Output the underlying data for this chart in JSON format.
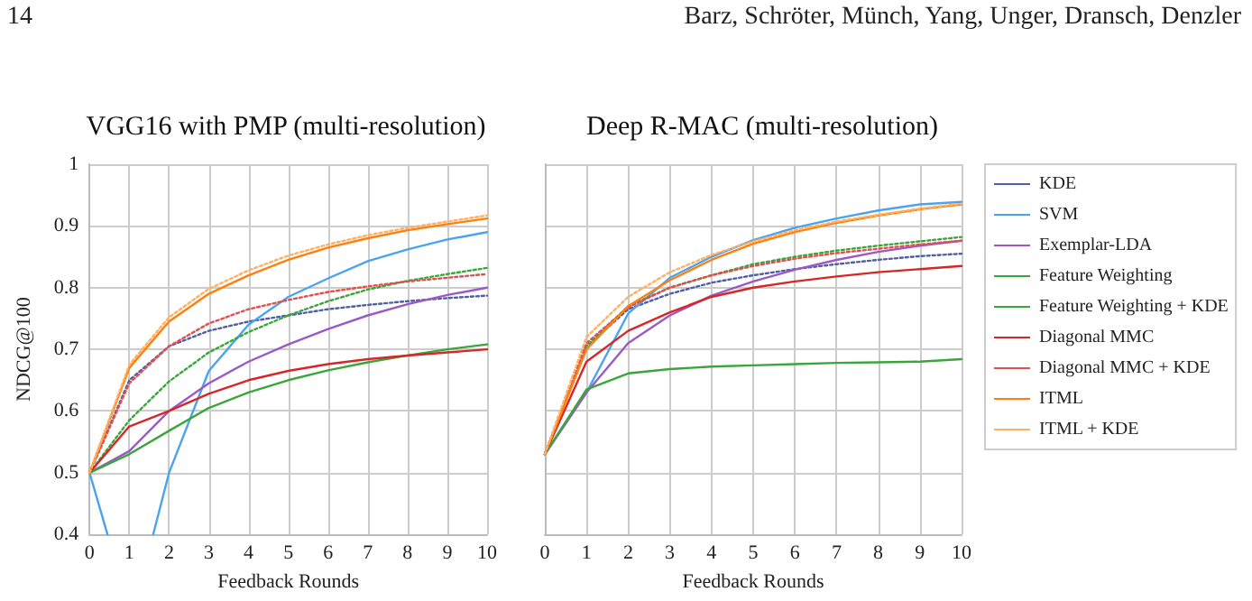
{
  "chart_data": [
    {
      "type": "line",
      "title": "VGG16 with PMP (multi-resolution)",
      "xlabel": "Feedback Rounds",
      "ylabel": "NDCG@100",
      "annotations": [
        "14",
        "Barz, Schröter, Münch, Yang, Unger, Dransch, Denzler"
      ],
      "x": [
        0,
        1,
        2,
        3,
        4,
        5,
        6,
        7,
        8,
        9,
        10
      ],
      "xlim": [
        0,
        10
      ],
      "xticks": [
        0,
        1,
        2,
        3,
        4,
        5,
        6,
        7,
        8,
        9,
        10
      ],
      "ylim": [
        0.4,
        1
      ],
      "yticks": [
        0.4,
        0.5,
        0.6,
        0.7,
        0.8,
        0.9,
        1
      ],
      "grid": true,
      "legend": false,
      "marker": "none",
      "series": [
        {
          "color": "#4e5fa8",
          "line_style": "dotted",
          "values": [
            0.5,
            0.65,
            0.705,
            0.73,
            0.745,
            0.755,
            0.765,
            0.772,
            0.778,
            0.783,
            0.787
          ]
        },
        {
          "color": "#4aa3f0",
          "line_style": "solid",
          "x": [
            0,
            0.45,
            1,
            1.6,
            2,
            3,
            4,
            5,
            6,
            7,
            8,
            9,
            10
          ],
          "values": [
            0.5,
            0.4,
            null,
            0.4,
            0.5,
            0.665,
            0.74,
            0.785,
            0.815,
            0.843,
            0.862,
            0.878,
            0.89
          ]
        },
        {
          "color": "#9b59c8",
          "line_style": "solid",
          "values": [
            0.5,
            0.535,
            0.6,
            0.645,
            0.68,
            0.708,
            0.733,
            0.755,
            0.773,
            0.788,
            0.8
          ]
        },
        {
          "color": "#3aa63a",
          "line_style": "solid",
          "values": [
            0.5,
            0.53,
            0.568,
            0.605,
            0.63,
            0.65,
            0.666,
            0.679,
            0.69,
            0.7,
            0.708
          ]
        },
        {
          "color": "#3aa63a",
          "line_style": "dotted",
          "values": [
            0.5,
            0.585,
            0.648,
            0.695,
            0.728,
            0.755,
            0.778,
            0.797,
            0.811,
            0.822,
            0.832
          ]
        },
        {
          "color": "#d62728",
          "line_style": "solid",
          "values": [
            0.5,
            0.575,
            0.6,
            0.628,
            0.65,
            0.665,
            0.676,
            0.684,
            0.69,
            0.695,
            0.7
          ]
        },
        {
          "color": "#e05050",
          "line_style": "dotted",
          "values": [
            0.5,
            0.645,
            0.705,
            0.742,
            0.765,
            0.78,
            0.793,
            0.802,
            0.81,
            0.816,
            0.822
          ]
        },
        {
          "color": "#ff7f0e",
          "line_style": "solid",
          "values": [
            0.5,
            0.67,
            0.745,
            0.79,
            0.82,
            0.845,
            0.865,
            0.88,
            0.893,
            0.903,
            0.912
          ]
        },
        {
          "color": "#ffb060",
          "line_style": "dotted",
          "values": [
            0.5,
            0.675,
            0.752,
            0.798,
            0.828,
            0.852,
            0.87,
            0.885,
            0.897,
            0.907,
            0.917
          ]
        }
      ]
    },
    {
      "type": "line",
      "title": "Deep R-MAC (multi-resolution)",
      "xlabel": "Feedback Rounds",
      "x": [
        0,
        1,
        2,
        3,
        4,
        5,
        6,
        7,
        8,
        9,
        10
      ],
      "xlim": [
        0,
        10
      ],
      "xticks": [
        0,
        1,
        2,
        3,
        4,
        5,
        6,
        7,
        8,
        9,
        10
      ],
      "ylim": [
        0.4,
        1
      ],
      "yticks": [
        0.4,
        0.5,
        0.6,
        0.7,
        0.8,
        0.9,
        1
      ],
      "tick_labels": "x",
      "grid": true,
      "legend": "right",
      "marker": "none",
      "series": [
        {
          "name": "KDE",
          "color": "#4e5fa8",
          "line_style": "dotted",
          "values": [
            0.53,
            0.705,
            0.765,
            0.79,
            0.808,
            0.82,
            0.83,
            0.838,
            0.845,
            0.851,
            0.855
          ]
        },
        {
          "name": "SVM",
          "color": "#4aa3f0",
          "line_style": "solid",
          "values": [
            0.53,
            0.63,
            0.758,
            0.816,
            0.85,
            0.877,
            0.897,
            0.912,
            0.925,
            0.935,
            0.939
          ]
        },
        {
          "name": "Exemplar-LDA",
          "color": "#9b59c8",
          "line_style": "solid",
          "values": [
            0.53,
            0.63,
            0.71,
            0.755,
            0.787,
            0.81,
            0.829,
            0.845,
            0.858,
            0.868,
            0.876
          ]
        },
        {
          "name": "Feature Weighting",
          "color": "#3aa63a",
          "line_style": "solid",
          "values": [
            0.53,
            0.635,
            0.661,
            0.668,
            0.672,
            0.674,
            0.676,
            0.678,
            0.679,
            0.68,
            0.684
          ]
        },
        {
          "name": "Feature Weighting + KDE",
          "color": "#3aa63a",
          "line_style": "dotted",
          "values": [
            0.53,
            0.705,
            0.77,
            0.8,
            0.82,
            0.838,
            0.85,
            0.86,
            0.868,
            0.875,
            0.882
          ]
        },
        {
          "name": "Diagonal MMC",
          "color": "#d62728",
          "line_style": "solid",
          "values": [
            0.53,
            0.68,
            0.73,
            0.76,
            0.785,
            0.8,
            0.81,
            0.818,
            0.825,
            0.83,
            0.835
          ]
        },
        {
          "name": "Diagonal MMC + KDE",
          "color": "#e05050",
          "line_style": "dotted",
          "values": [
            0.53,
            0.71,
            0.768,
            0.8,
            0.82,
            0.835,
            0.847,
            0.856,
            0.863,
            0.87,
            0.876
          ]
        },
        {
          "name": "ITML",
          "color": "#ff7f0e",
          "line_style": "solid",
          "values": [
            0.53,
            0.7,
            0.77,
            0.812,
            0.845,
            0.871,
            0.89,
            0.905,
            0.917,
            0.927,
            0.935
          ]
        },
        {
          "name": "ITML + KDE",
          "color": "#ffb060",
          "line_style": "dotted",
          "values": [
            0.53,
            0.72,
            0.785,
            0.825,
            0.853,
            0.875,
            0.893,
            0.907,
            0.918,
            0.928,
            0.936
          ]
        }
      ]
    }
  ]
}
